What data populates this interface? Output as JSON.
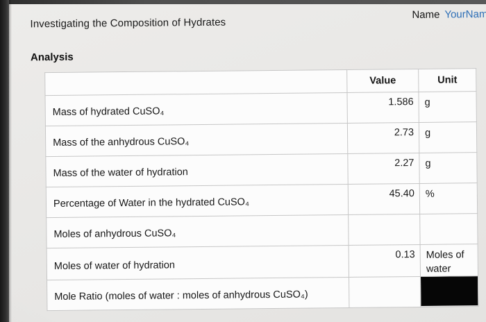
{
  "header": {
    "title": "Investigating the Composition of Hydrates",
    "name_label": "Name",
    "name_value": "YourNam"
  },
  "section": {
    "heading": "Analysis"
  },
  "table": {
    "columns": {
      "value": "Value",
      "unit": "Unit"
    },
    "rows": [
      {
        "label": "Mass of hydrated CuSO₄",
        "value": "1.586",
        "unit": "g"
      },
      {
        "label": "Mass of the anhydrous CuSO₄",
        "value": "2.73",
        "unit": "g"
      },
      {
        "label": "Mass of the water of hydration",
        "value": "2.27",
        "unit": "g"
      },
      {
        "label": "Percentage of Water in the hydrated CuSO₄",
        "value": "45.40",
        "unit": "%"
      },
      {
        "label": "Moles of anhydrous CuSO₄",
        "value": "",
        "unit": ""
      },
      {
        "label": "Moles of water of hydration",
        "value": "0.13",
        "unit": "Moles of water"
      },
      {
        "label": "Mole Ratio (moles of water : moles of anhydrous CuSO₄)",
        "value": "",
        "unit": ""
      }
    ]
  },
  "colors": {
    "name_link_blue": "#2e6fb7",
    "table_border": "#c6c6c6",
    "redaction_black": "#060606"
  }
}
